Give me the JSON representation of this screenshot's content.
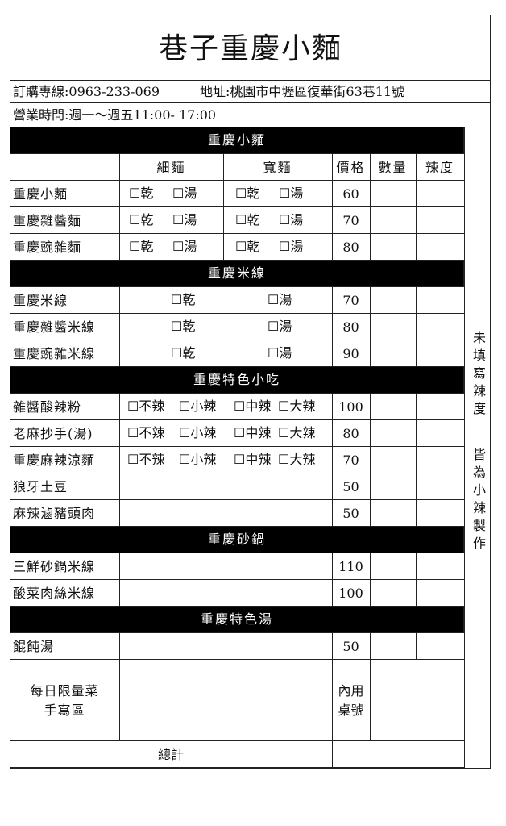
{
  "header": {
    "title": "巷子重慶小麵",
    "phone": "訂購專線:0963-233-069",
    "address": "地址:桃園市中壢區復華街63巷11號",
    "hours": "營業時間:週一～週五11:00- 17:00"
  },
  "columns": {
    "thin": "細麵",
    "wide": "寬麵",
    "price": "價格",
    "qty": "數量",
    "spice": "辣度"
  },
  "note": [
    "未填寫辣度",
    "皆為小辣製作"
  ],
  "sections": [
    {
      "title": "重慶小麵",
      "items": [
        {
          "name": "重慶小麵",
          "options": [
            "☐乾",
            "☐湯",
            "☐乾",
            "☐湯"
          ],
          "price": 60
        },
        {
          "name": "重慶雜醬麵",
          "options": [
            "☐乾",
            "☐湯",
            "☐乾",
            "☐湯"
          ],
          "price": 70
        },
        {
          "name": "重慶豌雜麵",
          "options": [
            "☐乾",
            "☐湯",
            "☐乾",
            "☐湯"
          ],
          "price": 80
        }
      ]
    },
    {
      "title": "重慶米線",
      "items": [
        {
          "name": "重慶米線",
          "options": [
            "☐乾",
            "☐湯"
          ],
          "price": 70
        },
        {
          "name": "重慶雜醬米線",
          "options": [
            "☐乾",
            "☐湯"
          ],
          "price": 80
        },
        {
          "name": "重慶豌雜米線",
          "options": [
            "☐乾",
            "☐湯"
          ],
          "price": 90
        }
      ]
    },
    {
      "title": "重慶特色小吃",
      "items": [
        {
          "name": "雜醬酸辣粉",
          "options": [
            "☐不辣",
            "☐小辣",
            "☐中辣",
            "☐大辣"
          ],
          "price": 100
        },
        {
          "name": "老麻抄手(湯)",
          "options": [
            "☐不辣",
            "☐小辣",
            "☐中辣",
            "☐大辣"
          ],
          "price": 80
        },
        {
          "name": "重慶麻辣涼麵",
          "options": [
            "☐不辣",
            "☐小辣",
            "☐中辣",
            "☐大辣"
          ],
          "price": 70
        },
        {
          "name": "狼牙土豆",
          "options": [],
          "price": 50
        },
        {
          "name": "麻辣滷豬頭肉",
          "options": [],
          "price": 50
        }
      ]
    },
    {
      "title": "重慶砂鍋",
      "items": [
        {
          "name": "三鮮砂鍋米線",
          "options": [],
          "price": 110
        },
        {
          "name": "酸菜肉絲米線",
          "options": [],
          "price": 100
        }
      ]
    },
    {
      "title": "重慶特色湯",
      "items": [
        {
          "name": "餛飩湯",
          "options": [],
          "price": 50
        }
      ]
    }
  ],
  "memo": {
    "label": [
      "每日限量菜",
      "手寫區"
    ],
    "table": [
      "內用",
      "桌號"
    ]
  },
  "total": "總計"
}
